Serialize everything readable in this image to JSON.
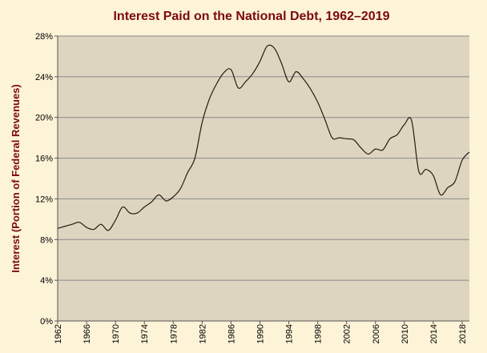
{
  "chart_data": {
    "type": "line",
    "title": "Interest Paid on the National Debt, 1962–2019",
    "y_label": "Interest (Portion of Federal Revenues)",
    "x": [
      1962,
      1963,
      1964,
      1965,
      1966,
      1967,
      1968,
      1969,
      1970,
      1971,
      1972,
      1973,
      1974,
      1975,
      1976,
      1977,
      1978,
      1979,
      1980,
      1981,
      1982,
      1983,
      1984,
      1985,
      1986,
      1987,
      1988,
      1989,
      1990,
      1991,
      1992,
      1993,
      1994,
      1995,
      1996,
      1997,
      1998,
      1999,
      2000,
      2001,
      2002,
      2003,
      2004,
      2005,
      2006,
      2007,
      2008,
      2009,
      2010,
      2011,
      2012,
      2013,
      2014,
      2015,
      2016,
      2017,
      2018,
      2019
    ],
    "series": [
      {
        "color": "#2b1a10",
        "values": [
          9.1,
          9.3,
          9.5,
          9.7,
          9.2,
          9.0,
          9.5,
          8.9,
          9.9,
          11.2,
          10.6,
          10.6,
          11.2,
          11.7,
          12.4,
          11.8,
          12.2,
          13.0,
          14.6,
          16.0,
          19.5,
          21.8,
          23.3,
          24.4,
          24.7,
          22.9,
          23.5,
          24.3,
          25.5,
          27.0,
          26.8,
          25.3,
          23.5,
          24.5,
          23.8,
          22.8,
          21.5,
          19.8,
          18.0,
          18.0,
          17.9,
          17.8,
          17.0,
          16.4,
          16.9,
          16.8,
          17.9,
          18.3,
          19.3,
          19.7,
          14.7,
          14.9,
          14.3,
          12.4,
          13.1,
          13.7,
          15.8,
          16.6
        ]
      }
    ],
    "xlim": [
      1962,
      2019
    ],
    "xticks": [
      1962,
      1966,
      1970,
      1974,
      1978,
      1982,
      1986,
      1990,
      1994,
      1998,
      2002,
      2006,
      2010,
      2014,
      2018
    ],
    "ylim": [
      0,
      28
    ],
    "yticks": [
      {
        "value": 0,
        "label": "0%"
      },
      {
        "value": 4,
        "label": "4%"
      },
      {
        "value": 8,
        "label": "8%"
      },
      {
        "value": 12,
        "label": "12%"
      },
      {
        "value": 16,
        "label": "16%"
      },
      {
        "value": 20,
        "label": "20%"
      },
      {
        "value": 24,
        "label": "24%"
      },
      {
        "value": 28,
        "label": "28%"
      }
    ],
    "grid": true
  }
}
